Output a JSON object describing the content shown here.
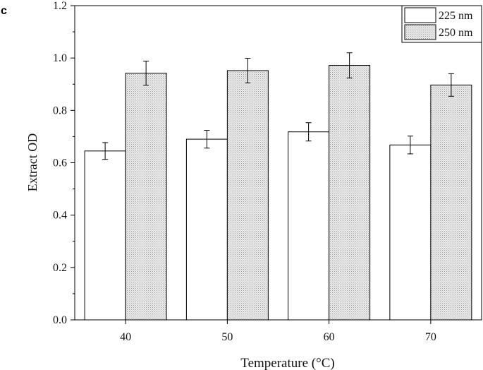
{
  "panel_label": "c",
  "colors": {
    "series_225_fill": "#ffffff",
    "series_250_fill": "#e0e0e0",
    "stroke": "#000000"
  },
  "chart_data": {
    "type": "bar",
    "title": "",
    "xlabel": "Temperature (°C)",
    "ylabel": "Extract OD",
    "categories": [
      "40",
      "50",
      "60",
      "70"
    ],
    "ylim": [
      0,
      1.2
    ],
    "yticks": [
      "0.0",
      "0.2",
      "0.4",
      "0.6",
      "0.8",
      "1.0",
      "1.2"
    ],
    "grid": false,
    "legend_position": "top-right",
    "series": [
      {
        "name": "225 nm",
        "values": [
          0.645,
          0.69,
          0.718,
          0.668
        ],
        "errors": [
          0.032,
          0.034,
          0.035,
          0.034
        ],
        "pattern": "none"
      },
      {
        "name": "250 nm",
        "values": [
          0.942,
          0.952,
          0.972,
          0.897
        ],
        "errors": [
          0.046,
          0.047,
          0.048,
          0.043
        ],
        "pattern": "dotted"
      }
    ]
  }
}
